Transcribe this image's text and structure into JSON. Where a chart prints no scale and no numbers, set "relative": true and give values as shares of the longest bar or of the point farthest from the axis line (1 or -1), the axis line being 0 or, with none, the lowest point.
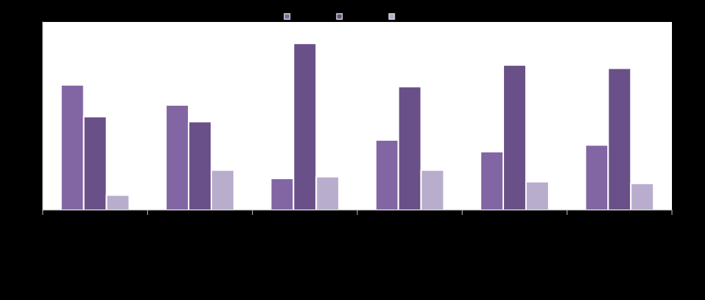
{
  "chart_data": {
    "type": "bar",
    "relative": true,
    "categories": [
      null,
      null,
      null,
      null,
      null,
      null
    ],
    "series": [
      {
        "color": "#8266a4",
        "values": [
          0.75,
          0.63,
          0.19,
          0.42,
          0.35,
          0.39
        ]
      },
      {
        "color": "#6a5088",
        "values": [
          0.56,
          0.53,
          1.0,
          0.74,
          0.87,
          0.85
        ]
      },
      {
        "color": "#b8adcc",
        "values": [
          0.09,
          0.24,
          0.2,
          0.24,
          0.17,
          0.16
        ]
      }
    ]
  }
}
